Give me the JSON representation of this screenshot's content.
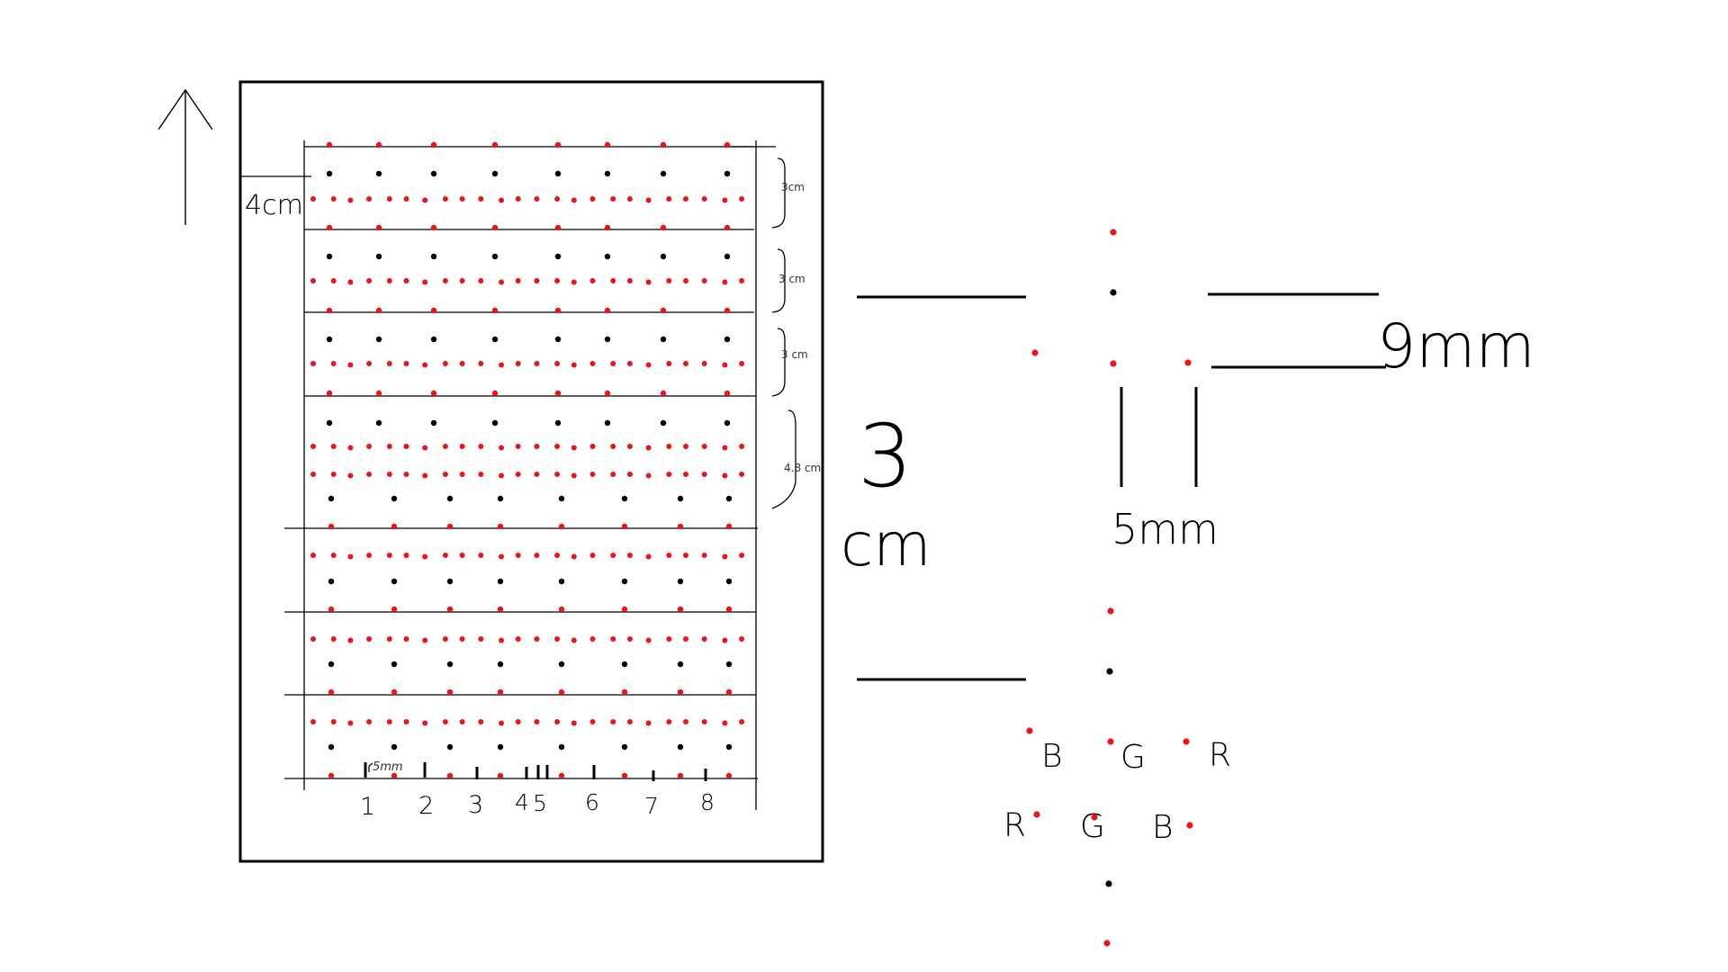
{
  "colors": {
    "ink": "#000000",
    "red_dot": "#e8161b",
    "black_dot": "#000000",
    "background": "#ffffff"
  },
  "icons": {
    "arrow": "up-arrow-icon"
  },
  "left_panel": {
    "label_top_offset": "4cm",
    "brackets": [
      "3cm",
      "3 cm",
      "3 cm",
      "4.8 cm"
    ],
    "scale_label": "5mm",
    "column_numbers": [
      "1",
      "2",
      "3",
      "4",
      "5",
      "6",
      "7",
      "8"
    ]
  },
  "right_panel": {
    "label_span": [
      "3",
      "cm"
    ],
    "label_inner_gap": "9mm",
    "label_column_gap": "5mm",
    "order_row_1": [
      "B",
      "G",
      "R"
    ],
    "order_row_2": [
      "R",
      "G",
      "B"
    ]
  }
}
